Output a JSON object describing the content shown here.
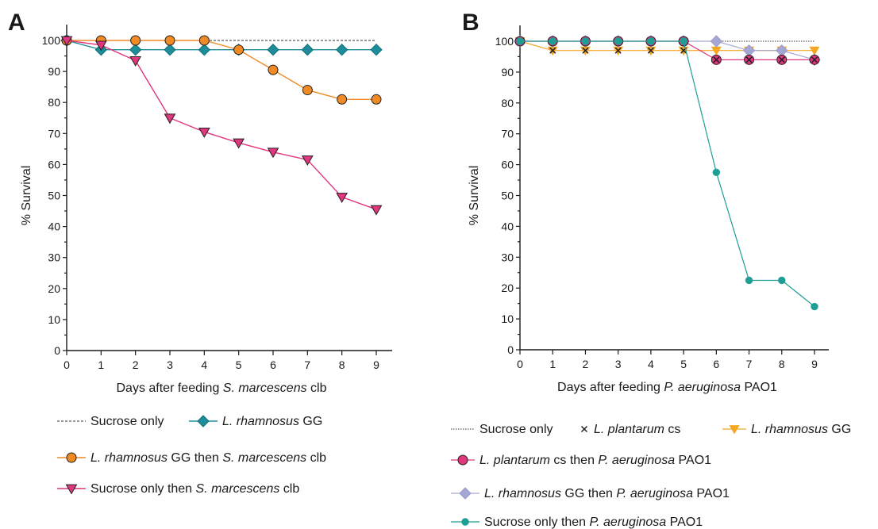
{
  "chart_data": [
    {
      "panel": "A",
      "type": "line",
      "xlabel_parts": [
        {
          "text": "Days after feeding ",
          "italic": false
        },
        {
          "text": "S. marcescens",
          "italic": true
        },
        {
          "text": " clb",
          "italic": false
        }
      ],
      "ylabel": "% Survival",
      "xlim": [
        0,
        9
      ],
      "ylim": [
        0,
        100
      ],
      "xticks": [
        0,
        1,
        2,
        3,
        4,
        5,
        6,
        7,
        8,
        9
      ],
      "yticks": [
        0,
        10,
        20,
        30,
        40,
        50,
        60,
        70,
        80,
        90,
        100
      ],
      "x": [
        0,
        1,
        2,
        3,
        4,
        5,
        6,
        7,
        8,
        9
      ],
      "series": [
        {
          "values": [
            100,
            100,
            100,
            100,
            100,
            100,
            100,
            100,
            100,
            100
          ],
          "color": "#333333",
          "marker": "none",
          "dash": "3,2",
          "width": 1,
          "legend_parts": [
            {
              "text": "Sucrose only",
              "italic": false
            }
          ]
        },
        {
          "values": [
            100,
            97,
            97,
            97,
            97,
            97,
            97,
            97,
            97,
            97
          ],
          "color": "#1e8c99",
          "marker": "diamond",
          "dash": "",
          "width": 1.4,
          "legend_parts": [
            {
              "text": "L. rhamnosus",
              "italic": true
            },
            {
              "text": " GG",
              "italic": false
            }
          ]
        },
        {
          "values": [
            100,
            100,
            100,
            100,
            100,
            97,
            90.5,
            84,
            81,
            81
          ],
          "color": "#f08a24",
          "marker": "circle",
          "dash": "",
          "width": 1.4,
          "legend_parts": [
            {
              "text": "L. rhamnosus",
              "italic": true
            },
            {
              "text": " GG   then ",
              "italic": false
            },
            {
              "text": "S. marcescens",
              "italic": true
            },
            {
              "text": " clb",
              "italic": false
            }
          ]
        },
        {
          "values": [
            100,
            98.5,
            93.5,
            75,
            70.5,
            67,
            64,
            61.5,
            49.5,
            45.5
          ],
          "color": "#e0357f",
          "marker": "triangle-down",
          "dash": "",
          "width": 1.4,
          "legend_parts": [
            {
              "text": "Sucrose only then ",
              "italic": false
            },
            {
              "text": "S. marcescens",
              "italic": true
            },
            {
              "text": " clb",
              "italic": false
            }
          ]
        }
      ]
    },
    {
      "panel": "B",
      "type": "line",
      "xlabel_parts": [
        {
          "text": "Days after feeding ",
          "italic": false
        },
        {
          "text": "P. aeruginosa",
          "italic": true
        },
        {
          "text": " PAO1",
          "italic": false
        }
      ],
      "ylabel": "% Survival",
      "xlim": [
        0,
        9
      ],
      "ylim": [
        0,
        100
      ],
      "xticks": [
        0,
        1,
        2,
        3,
        4,
        5,
        6,
        7,
        8,
        9
      ],
      "yticks": [
        0,
        10,
        20,
        30,
        40,
        50,
        60,
        70,
        80,
        90,
        100
      ],
      "x": [
        0,
        1,
        2,
        3,
        4,
        5,
        6,
        7,
        8,
        9
      ],
      "series": [
        {
          "values": [
            100,
            100,
            100,
            100,
            100,
            100,
            100,
            100,
            100,
            100
          ],
          "color": "#333333",
          "marker": "none",
          "dash": "1.5,1.5",
          "width": 1,
          "legend_parts": [
            {
              "text": "Sucrose only",
              "italic": false
            }
          ]
        },
        {
          "values": [
            100,
            97,
            97,
            97,
            97,
            97,
            97,
            97,
            97,
            97
          ],
          "color": "#f5a623",
          "marker": "triangle-down",
          "dash": "",
          "width": 1.2,
          "legend_parts": [
            {
              "text": "L. rhamnosus",
              "italic": true
            },
            {
              "text": " GG",
              "italic": false
            }
          ]
        },
        {
          "values": [
            100,
            100,
            100,
            100,
            100,
            100,
            100,
            97,
            97,
            94
          ],
          "color": "#a4a6d4",
          "marker": "diamond",
          "dash": "",
          "width": 1.2,
          "legend_parts": [
            {
              "text": "L. rhamnosus",
              "italic": true
            },
            {
              "text": " GG then ",
              "italic": false
            },
            {
              "text": "P. aeruginosa",
              "italic": true
            },
            {
              "text": " PAO1",
              "italic": false
            }
          ]
        },
        {
          "values": [
            100,
            100,
            100,
            100,
            100,
            100,
            94,
            94,
            94,
            94
          ],
          "color": "#e0357f",
          "marker": "circle",
          "dash": "",
          "width": 1.2,
          "legend_parts": [
            {
              "text": "L. plantarum",
              "italic": true
            },
            {
              "text": " cs then ",
              "italic": false
            },
            {
              "text": "P. aeruginosa",
              "italic": true
            },
            {
              "text": " PAO1",
              "italic": false
            }
          ]
        },
        {
          "values": [
            100,
            97,
            97,
            97,
            97,
            97,
            94,
            94,
            94,
            94
          ],
          "color": "#222222",
          "marker": "x",
          "dash": "",
          "width": 0,
          "legend_parts": [
            {
              "text": "L. plantarum",
              "italic": true
            },
            {
              "text": " cs",
              "italic": false
            }
          ]
        },
        {
          "values": [
            100,
            100,
            100,
            100,
            100,
            100,
            57.5,
            22.5,
            22.5,
            14
          ],
          "color": "#1f9e95",
          "marker": "circle-small",
          "dash": "",
          "width": 1.2,
          "legend_parts": [
            {
              "text": "Sucrose only then ",
              "italic": false
            },
            {
              "text": "P. aeruginosa",
              "italic": true
            },
            {
              "text": " PAO1",
              "italic": false
            }
          ]
        }
      ]
    }
  ]
}
